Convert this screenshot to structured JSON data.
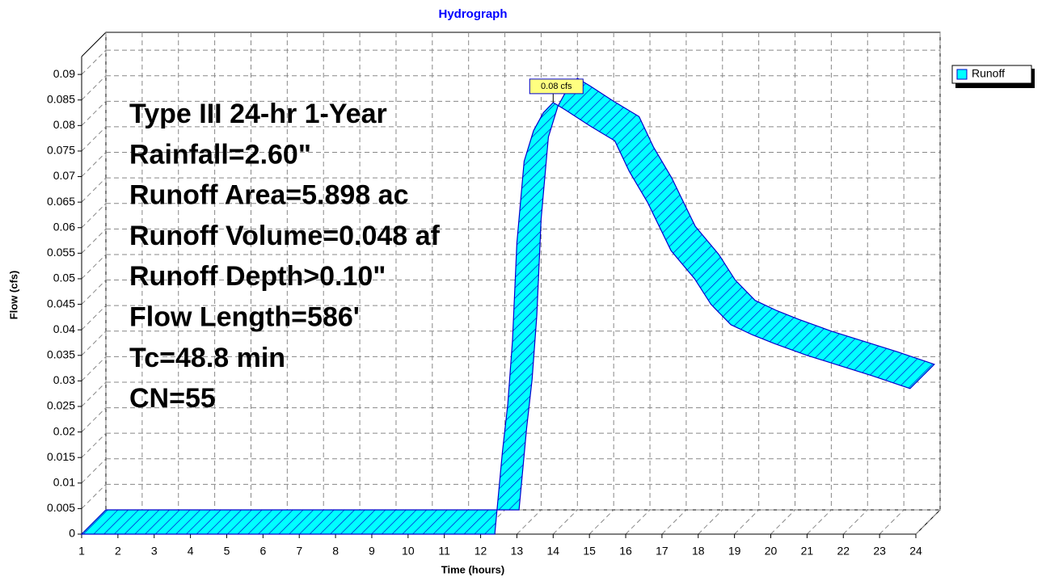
{
  "chart_data": {
    "type": "line3d",
    "title": "Hydrograph",
    "xlabel": "Time  (hours)",
    "ylabel": "Flow  (cfs)",
    "xlim": [
      1,
      24
    ],
    "xticks": [
      1,
      2,
      3,
      4,
      5,
      6,
      7,
      8,
      9,
      10,
      11,
      12,
      13,
      14,
      15,
      16,
      17,
      18,
      19,
      20,
      21,
      22,
      23,
      24
    ],
    "ylim": [
      0,
      0.0935
    ],
    "yticks": [
      0,
      0.005,
      0.01,
      0.015,
      0.02,
      0.025,
      0.03,
      0.035,
      0.04,
      0.045,
      0.05,
      0.055,
      0.06,
      0.065,
      0.07,
      0.075,
      0.08,
      0.085,
      0.09
    ],
    "grid": true,
    "legend": "top-right",
    "annotations": [
      "Type III 24-hr 1-Year",
      "Rainfall=2.60\"",
      "Runoff Area=5.898 ac",
      "Runoff Volume=0.048 af",
      "Runoff Depth>0.10\"",
      "Flow Length=586'",
      "Tc=48.8 min",
      "CN=55"
    ],
    "peak_label": "0.08 cfs",
    "series": [
      {
        "name": "Runoff",
        "color": "#00ffff",
        "x": [
          1,
          12.39,
          12.6,
          12.75,
          12.88,
          13.0,
          13.2,
          13.46,
          13.73,
          14.0,
          14.35,
          15.0,
          15.7,
          16.1,
          16.6,
          17.25,
          17.9,
          18.35,
          18.9,
          19.5,
          20.1,
          21.0,
          21.9,
          22.8,
          23.84
        ],
        "values": [
          0,
          0,
          0.016,
          0.0255,
          0.038,
          0.057,
          0.073,
          0.079,
          0.0825,
          0.0845,
          0.083,
          0.08,
          0.077,
          0.071,
          0.065,
          0.0555,
          0.05,
          0.045,
          0.041,
          0.039,
          0.0373,
          0.035,
          0.033,
          0.031,
          0.0285
        ]
      }
    ]
  }
}
